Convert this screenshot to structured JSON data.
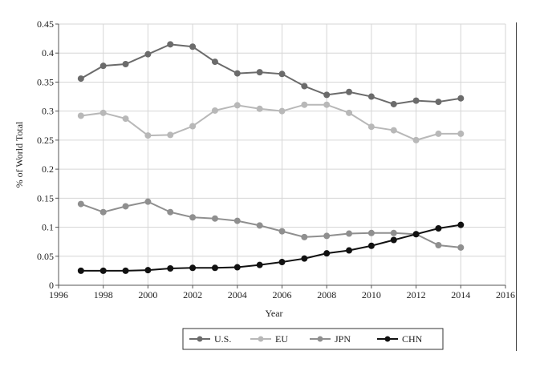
{
  "chart_data": {
    "type": "line",
    "xlabel": "Year",
    "ylabel": "% of World Total",
    "xlim": [
      1996,
      2016
    ],
    "ylim": [
      0,
      0.45
    ],
    "xticks": [
      "1996",
      "1998",
      "2000",
      "2002",
      "2004",
      "2006",
      "2008",
      "2010",
      "2012",
      "2014",
      "2016"
    ],
    "yticks": [
      "0",
      "0.05",
      "0.1",
      "0.15",
      "0.2",
      "0.25",
      "0.3",
      "0.35",
      "0.4",
      "0.45"
    ],
    "grid": true,
    "legend_position": "bottom",
    "x": [
      1997,
      1998,
      1999,
      2000,
      2001,
      2002,
      2003,
      2004,
      2005,
      2006,
      2007,
      2008,
      2009,
      2010,
      2011,
      2012,
      2013,
      2014
    ],
    "series": [
      {
        "name": "U.S.",
        "color": "#6b6b6b",
        "values": [
          0.356,
          0.378,
          0.381,
          0.398,
          0.415,
          0.411,
          0.385,
          0.365,
          0.367,
          0.364,
          0.343,
          0.328,
          0.333,
          0.325,
          0.312,
          0.318,
          0.316,
          0.322
        ]
      },
      {
        "name": "EU",
        "color": "#b8b8b8",
        "values": [
          0.292,
          0.297,
          0.287,
          0.258,
          0.259,
          0.274,
          0.301,
          0.31,
          0.304,
          0.3,
          0.311,
          0.311,
          0.297,
          0.273,
          0.267,
          0.25,
          0.261,
          0.261
        ]
      },
      {
        "name": "JPN",
        "color": "#8f8f8f",
        "values": [
          0.14,
          0.126,
          0.136,
          0.144,
          0.126,
          0.117,
          0.115,
          0.111,
          0.103,
          0.093,
          0.083,
          0.085,
          0.089,
          0.09,
          0.09,
          0.088,
          0.069,
          0.065
        ]
      },
      {
        "name": "CHN",
        "color": "#111111",
        "values": [
          0.025,
          0.025,
          0.025,
          0.026,
          0.029,
          0.03,
          0.03,
          0.031,
          0.035,
          0.04,
          0.046,
          0.055,
          0.06,
          0.068,
          0.078,
          0.088,
          0.098,
          0.104
        ]
      }
    ]
  }
}
